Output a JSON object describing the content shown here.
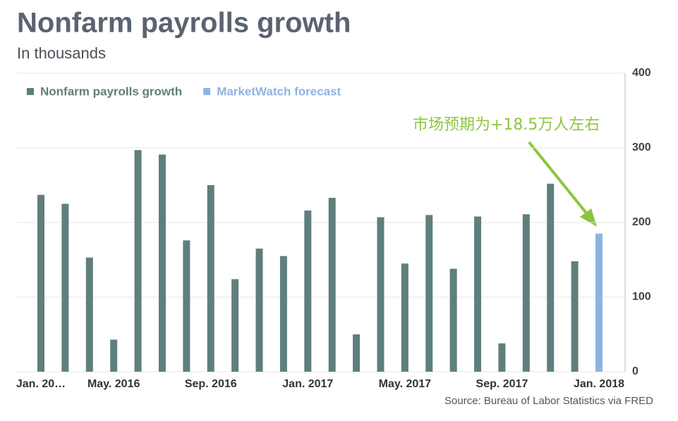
{
  "chart_data": {
    "type": "bar",
    "title": "Nonfarm payrolls growth",
    "subtitle": "In thousands",
    "source": "Source: Bureau of Labor Statistics via FRED",
    "annotation": "市场预期为+18.5万人左右",
    "categories": [
      "Jan. 20…",
      null,
      null,
      "May. 2016",
      null,
      null,
      null,
      "Sep. 2016",
      null,
      null,
      null,
      "Jan. 2017",
      null,
      null,
      null,
      "May. 2017",
      null,
      null,
      null,
      "Sep. 2017",
      null,
      null,
      null,
      "Jan. 2018"
    ],
    "series": [
      {
        "name": "Nonfarm payrolls growth",
        "color": "#5f7f7c",
        "values": [
          237,
          225,
          153,
          43,
          297,
          291,
          176,
          250,
          124,
          165,
          155,
          216,
          233,
          50,
          207,
          145,
          210,
          138,
          208,
          38,
          211,
          252,
          148,
          null
        ]
      },
      {
        "name": "MarketWatch forecast",
        "color": "#8db4e0",
        "values": [
          null,
          null,
          null,
          null,
          null,
          null,
          null,
          null,
          null,
          null,
          null,
          null,
          null,
          null,
          null,
          null,
          null,
          null,
          null,
          null,
          null,
          null,
          null,
          185
        ]
      }
    ],
    "ylim": [
      0,
      400
    ],
    "yticks": [
      0,
      100,
      200,
      300,
      400
    ],
    "grid": true,
    "legend": "top-left"
  }
}
